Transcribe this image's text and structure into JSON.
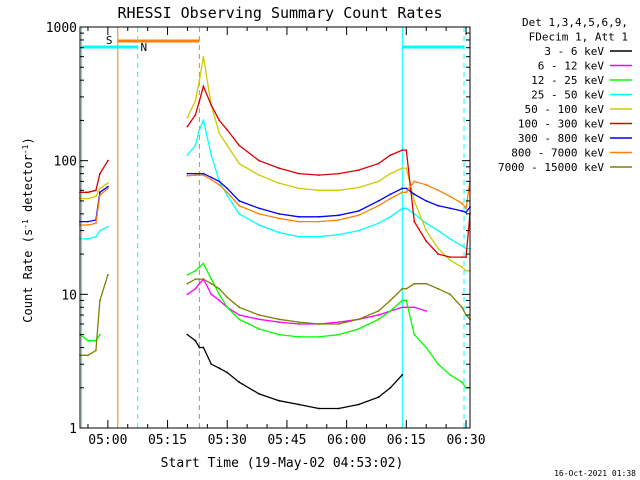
{
  "chart_data": {
    "type": "line",
    "title": "RHESSI Observing Summary Count Rates",
    "xlabel": "Start Time (19-May-02 04:53:02)",
    "ylabel_main": "Count Rate (s",
    "ylabel_sup1": "-1",
    "ylabel_mid": " detector",
    "ylabel_sup2": "-1",
    "ylabel_end": ")",
    "yscale": "log",
    "ylim": [
      1,
      1000
    ],
    "xlim_minutes": [
      0,
      98
    ],
    "x_ticks": [
      {
        "label": "05:00",
        "minute": 7
      },
      {
        "label": "05:15",
        "minute": 22
      },
      {
        "label": "05:30",
        "minute": 37
      },
      {
        "label": "05:45",
        "minute": 52
      },
      {
        "label": "06:00",
        "minute": 67
      },
      {
        "label": "06:15",
        "minute": 82
      },
      {
        "label": "06:30",
        "minute": 97
      }
    ],
    "y_ticks": [
      {
        "label": "1",
        "value": 1
      },
      {
        "label": "10",
        "value": 10
      },
      {
        "label": "100",
        "value": 100
      },
      {
        "label": "1000",
        "value": 1000
      }
    ],
    "legend_header": [
      "Det 1,3,4,5,6,9,",
      "FDecim 1, Att 1"
    ],
    "legend_position": "right",
    "footer_date": "16-Oct-2021 01:38",
    "annotations": [
      {
        "label": "S",
        "color": "#ff7f00"
      },
      {
        "label": "N",
        "color": "#00ffff"
      }
    ],
    "x_minutes": [
      0,
      2,
      4,
      5,
      7,
      8,
      9,
      11,
      14,
      18,
      22,
      26,
      27,
      29,
      30,
      31,
      33,
      35,
      37,
      40,
      45,
      50,
      55,
      60,
      65,
      70,
      75,
      78,
      81,
      82,
      84,
      87,
      90,
      93,
      96,
      97,
      98
    ],
    "series": [
      {
        "name": "3 - 6 keV",
        "color": "#000000",
        "values": [
          null,
          null,
          null,
          null,
          null,
          null,
          null,
          null,
          null,
          null,
          null,
          null,
          5,
          4.5,
          4,
          4,
          3,
          2.8,
          2.6,
          2.2,
          1.8,
          1.6,
          1.5,
          1.4,
          1.4,
          1.5,
          1.7,
          2.0,
          2.5,
          null,
          null,
          null,
          null,
          null,
          null,
          null,
          null
        ]
      },
      {
        "name": "6 - 12 keV",
        "color": "#ff00ff",
        "values": [
          null,
          null,
          null,
          null,
          null,
          null,
          null,
          null,
          null,
          null,
          null,
          null,
          10,
          11,
          12,
          13,
          10,
          9,
          8,
          7,
          6.5,
          6.2,
          6,
          6,
          6.2,
          6.5,
          7,
          7.5,
          8,
          8,
          8,
          7.5,
          null,
          null,
          null,
          null,
          null
        ]
      },
      {
        "name": "12 - 25 keV",
        "color": "#00ff00",
        "values": [
          5,
          4.5,
          4.5,
          5,
          null,
          null,
          null,
          null,
          null,
          null,
          null,
          null,
          14,
          15,
          16,
          17,
          13,
          10,
          8,
          6.5,
          5.5,
          5,
          4.8,
          4.8,
          5,
          5.5,
          6.5,
          7.5,
          9,
          9,
          5,
          4,
          3,
          2.5,
          2.2,
          2,
          2
        ]
      },
      {
        "name": "25 - 50 keV",
        "color": "#00ffff",
        "values": [
          26,
          26,
          27,
          30,
          32,
          null,
          null,
          null,
          null,
          null,
          null,
          null,
          110,
          130,
          170,
          200,
          110,
          70,
          55,
          40,
          33,
          29,
          27,
          27,
          28,
          30,
          34,
          38,
          44,
          44,
          40,
          34,
          30,
          26,
          23,
          22,
          22
        ]
      },
      {
        "name": "50 - 100 keV",
        "color": "#cccc00",
        "values": [
          52,
          52,
          54,
          62,
          68,
          null,
          null,
          null,
          null,
          null,
          null,
          null,
          210,
          280,
          400,
          600,
          260,
          160,
          130,
          95,
          78,
          68,
          62,
          60,
          60,
          63,
          70,
          80,
          88,
          88,
          50,
          30,
          22,
          18,
          16,
          15,
          15
        ]
      },
      {
        "name": "100 - 300 keV",
        "color": "#dd0000",
        "values": [
          58,
          58,
          60,
          80,
          100,
          null,
          null,
          null,
          null,
          null,
          null,
          null,
          180,
          220,
          280,
          360,
          260,
          200,
          170,
          130,
          100,
          88,
          80,
          78,
          80,
          85,
          95,
          110,
          120,
          120,
          35,
          25,
          20,
          19,
          19,
          19,
          40
        ]
      },
      {
        "name": "300 - 800 keV",
        "color": "#0000ff",
        "values": [
          35,
          35,
          36,
          58,
          64,
          null,
          null,
          null,
          null,
          null,
          null,
          null,
          80,
          80,
          80,
          80,
          75,
          70,
          62,
          50,
          44,
          40,
          38,
          38,
          39,
          42,
          50,
          56,
          62,
          62,
          56,
          50,
          46,
          44,
          42,
          41,
          45
        ]
      },
      {
        "name": "800 - 7000 keV",
        "color": "#ff7f00",
        "values": [
          33,
          33,
          34,
          55,
          62,
          null,
          null,
          null,
          null,
          null,
          null,
          null,
          77,
          78,
          78,
          78,
          72,
          66,
          58,
          46,
          40,
          37,
          35,
          35,
          36,
          39,
          46,
          52,
          58,
          58,
          70,
          66,
          60,
          54,
          48,
          44,
          70
        ]
      },
      {
        "name": "7000 - 15000 keV",
        "color": "#808000",
        "values": [
          3.5,
          3.5,
          3.8,
          9,
          14,
          null,
          null,
          null,
          null,
          null,
          null,
          null,
          12,
          13,
          13,
          13,
          12,
          11,
          9.5,
          8,
          7,
          6.5,
          6.2,
          6,
          6,
          6.5,
          7.5,
          9,
          11,
          11,
          12,
          12,
          11,
          10,
          8,
          7,
          6.5
        ]
      }
    ]
  }
}
